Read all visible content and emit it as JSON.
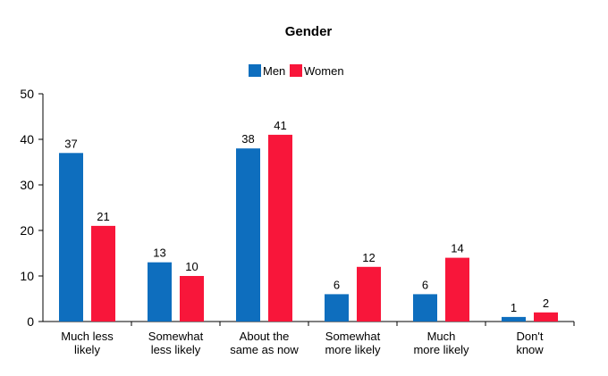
{
  "chart_data": {
    "type": "bar",
    "title": "Gender",
    "categories": [
      [
        "Much less",
        "likely"
      ],
      [
        "Somewhat",
        "less likely"
      ],
      [
        "About the",
        "same as now"
      ],
      [
        "Somewhat",
        "more likely"
      ],
      [
        "Much",
        "more likely"
      ],
      [
        "Don't",
        "know"
      ]
    ],
    "series": [
      {
        "name": "Men",
        "color": "#0e6ebe",
        "values": [
          37,
          13,
          38,
          6,
          6,
          1
        ]
      },
      {
        "name": "Women",
        "color": "#f8163a",
        "values": [
          21,
          10,
          41,
          12,
          14,
          2
        ]
      }
    ],
    "ylim": [
      0,
      50
    ],
    "yticks": [
      0,
      10,
      20,
      30,
      40,
      50
    ],
    "xlabel": "",
    "ylabel": "",
    "grid": false,
    "legend_position": "top-center",
    "data_labels": true
  }
}
